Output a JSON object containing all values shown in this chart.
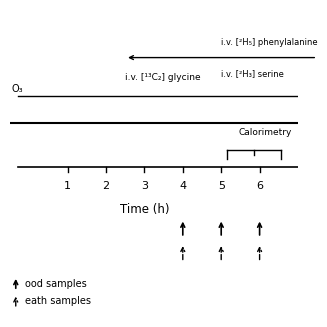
{
  "bg_color": "#ffffff",
  "text_color": "#000000",
  "line1_label": "i.v. [²H₅] phenylalanine",
  "line2_label": "i.v. [²H₃] serine",
  "line3_label": "i.v. [¹³C₂] glycine",
  "left_label": "O₃",
  "calorimetry_label": "Calorimetry",
  "time_label": "Time (h)",
  "blood_label": "ood samples",
  "breath_label": "eath samples",
  "tick_positions": [
    1,
    2,
    3,
    4,
    5,
    6
  ],
  "xlim": [
    -0.5,
    7.0
  ],
  "ylim": [
    -1.1,
    1.15
  ]
}
